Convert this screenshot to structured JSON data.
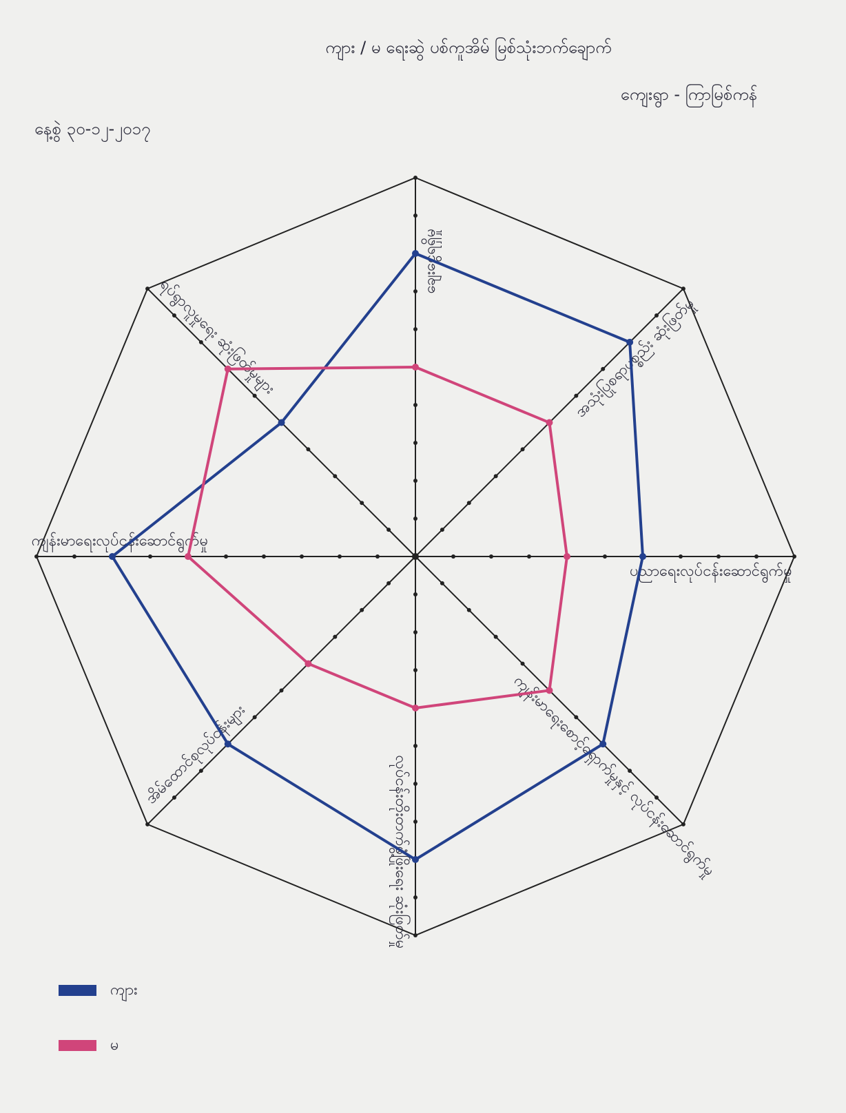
{
  "header": {
    "title": "ကျား / မ ရေးဆွဲ ပစ်ကူအိမ် မြစ်သုံးဘက်ချောက်",
    "village": "ကျေးရွာ - ကြာမြစ်ကန်",
    "date": "နေ့စွဲ ၃၀-၁၂-၂၀၁၇"
  },
  "chart_data": {
    "type": "radar",
    "categories": [
      "ချေးငွေရရှိမှု",
      "အသုံးပြုစရာပစ္စည်း ဆုံးဖြတ်မှု",
      "ပညာရေးလုပ်ငန်းဆောင်ရွက်မှု",
      "ကျန်းမာရေးစောင့်ရှောက်မှုနှင့် လုပ်ငန်းဆောင်ရွက်မှု",
      "လုပ်ငန်းတိုးတက်ဖွံ့ဖြိုးရေး ဆုံးဖြတ်မှု",
      "အိမ်ထောင်စုလုပ်ငန်းများ",
      "ကျန်းမာရေးလုပ်ငန်းဆောင်ရွက်မှု",
      "ရပ်ရွာလူမှုရေး ဆုံးဖြတ်မှုများ"
    ],
    "series": [
      {
        "name": "ကျား",
        "color": "#23408e",
        "values": [
          8,
          8,
          6,
          7,
          8,
          7,
          8,
          5
        ]
      },
      {
        "name": "မ",
        "color": "#d0457a",
        "values": [
          5,
          5,
          4,
          5,
          4,
          4,
          6,
          7
        ]
      }
    ],
    "rlim": [
      0,
      10
    ],
    "rticks": [
      1,
      2,
      3,
      4,
      5,
      6,
      7,
      8,
      9,
      10
    ],
    "legend": "bottom-left"
  }
}
